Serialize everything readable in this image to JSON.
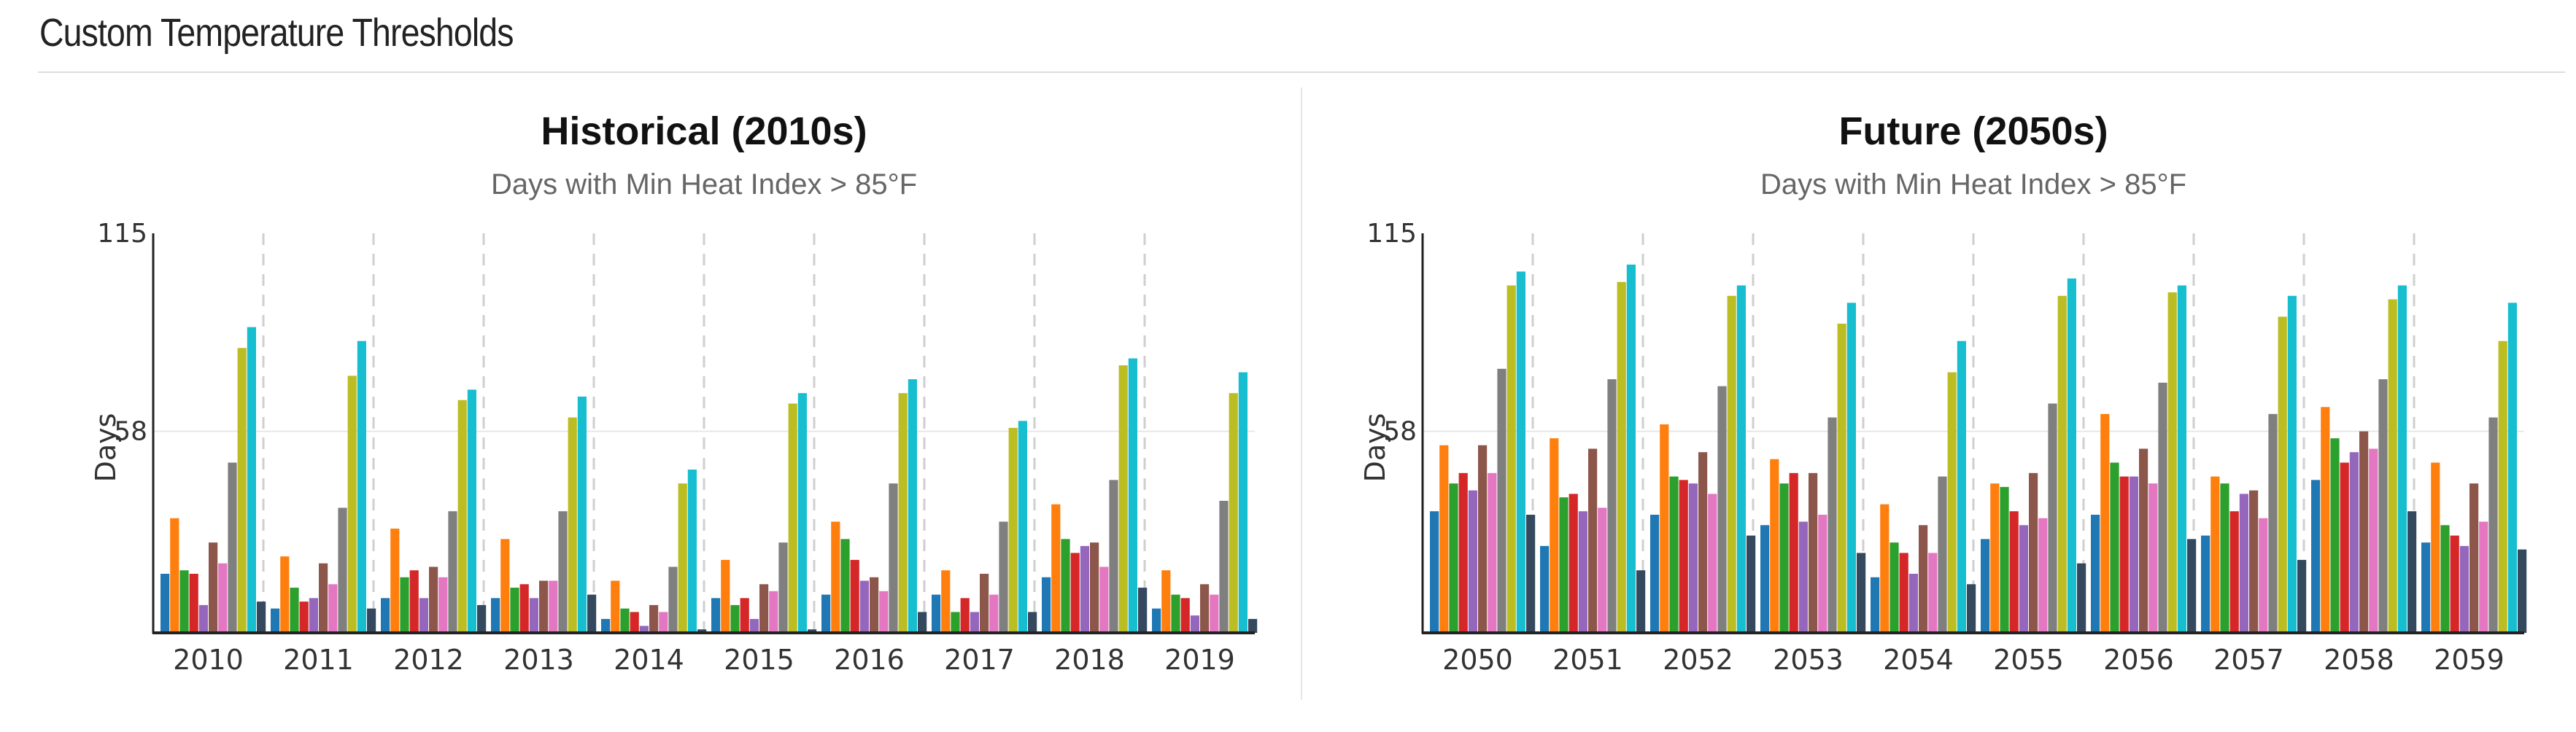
{
  "page": {
    "title": "Custom Temperature Thresholds"
  },
  "colors": [
    "#1f77b4",
    "#ff7f0e",
    "#2ca02c",
    "#d62728",
    "#9467bd",
    "#8c564b",
    "#e377c2",
    "#7f7f7f",
    "#bcbd22",
    "#17becf",
    "#34495e"
  ],
  "chart_data": [
    {
      "type": "bar",
      "title": "Historical (2010s)",
      "subtitle": "Days with Min Heat Index > 85°F",
      "ylabel": "Days",
      "ylim": [
        0,
        115
      ],
      "yticks": [
        58,
        115
      ],
      "grid": true,
      "categories": [
        "2010",
        "2011",
        "2012",
        "2013",
        "2014",
        "2015",
        "2016",
        "2017",
        "2018",
        "2019"
      ],
      "series": [
        {
          "values": [
            17,
            7,
            10,
            10,
            4,
            10,
            11,
            11,
            16,
            7
          ]
        },
        {
          "values": [
            33,
            22,
            30,
            27,
            15,
            21,
            32,
            18,
            37,
            18
          ]
        },
        {
          "values": [
            18,
            13,
            16,
            13,
            7,
            8,
            27,
            6,
            27,
            11
          ]
        },
        {
          "values": [
            17,
            9,
            18,
            14,
            6,
            10,
            21,
            10,
            23,
            10
          ]
        },
        {
          "values": [
            8,
            10,
            10,
            10,
            2,
            4,
            15,
            6,
            25,
            5
          ]
        },
        {
          "values": [
            26,
            20,
            19,
            15,
            8,
            14,
            16,
            17,
            26,
            14
          ]
        },
        {
          "values": [
            20,
            14,
            16,
            15,
            6,
            12,
            12,
            11,
            19,
            11
          ]
        },
        {
          "values": [
            49,
            36,
            35,
            35,
            19,
            26,
            43,
            32,
            44,
            38
          ]
        },
        {
          "values": [
            82,
            74,
            67,
            62,
            43,
            66,
            69,
            59,
            77,
            69
          ]
        },
        {
          "values": [
            88,
            84,
            70,
            68,
            47,
            69,
            73,
            61,
            79,
            75
          ]
        },
        {
          "values": [
            9,
            7,
            8,
            11,
            1,
            1,
            6,
            6,
            13,
            4
          ]
        }
      ]
    },
    {
      "type": "bar",
      "title": "Future (2050s)",
      "subtitle": "Days with Min Heat Index > 85°F",
      "ylabel": "Days",
      "ylim": [
        0,
        115
      ],
      "yticks": [
        58,
        115
      ],
      "grid": true,
      "categories": [
        "2050",
        "2051",
        "2052",
        "2053",
        "2054",
        "2055",
        "2056",
        "2057",
        "2058",
        "2059"
      ],
      "series": [
        {
          "values": [
            35,
            25,
            34,
            31,
            16,
            27,
            34,
            28,
            44,
            26
          ]
        },
        {
          "values": [
            54,
            56,
            60,
            50,
            37,
            43,
            63,
            45,
            65,
            49
          ]
        },
        {
          "values": [
            43,
            39,
            45,
            43,
            26,
            42,
            49,
            43,
            56,
            31
          ]
        },
        {
          "values": [
            46,
            40,
            44,
            46,
            23,
            35,
            45,
            35,
            49,
            28
          ]
        },
        {
          "values": [
            41,
            35,
            43,
            32,
            17,
            31,
            45,
            40,
            52,
            25
          ]
        },
        {
          "values": [
            54,
            53,
            52,
            46,
            31,
            46,
            53,
            41,
            58,
            43
          ]
        },
        {
          "values": [
            46,
            36,
            40,
            34,
            23,
            33,
            43,
            33,
            53,
            32
          ]
        },
        {
          "values": [
            76,
            73,
            71,
            62,
            45,
            66,
            72,
            63,
            73,
            62
          ]
        },
        {
          "values": [
            100,
            101,
            97,
            89,
            75,
            97,
            98,
            91,
            96,
            84
          ]
        },
        {
          "values": [
            104,
            106,
            100,
            95,
            84,
            102,
            100,
            97,
            100,
            95
          ]
        },
        {
          "values": [
            34,
            18,
            28,
            23,
            14,
            20,
            27,
            21,
            35,
            24
          ]
        }
      ]
    }
  ]
}
